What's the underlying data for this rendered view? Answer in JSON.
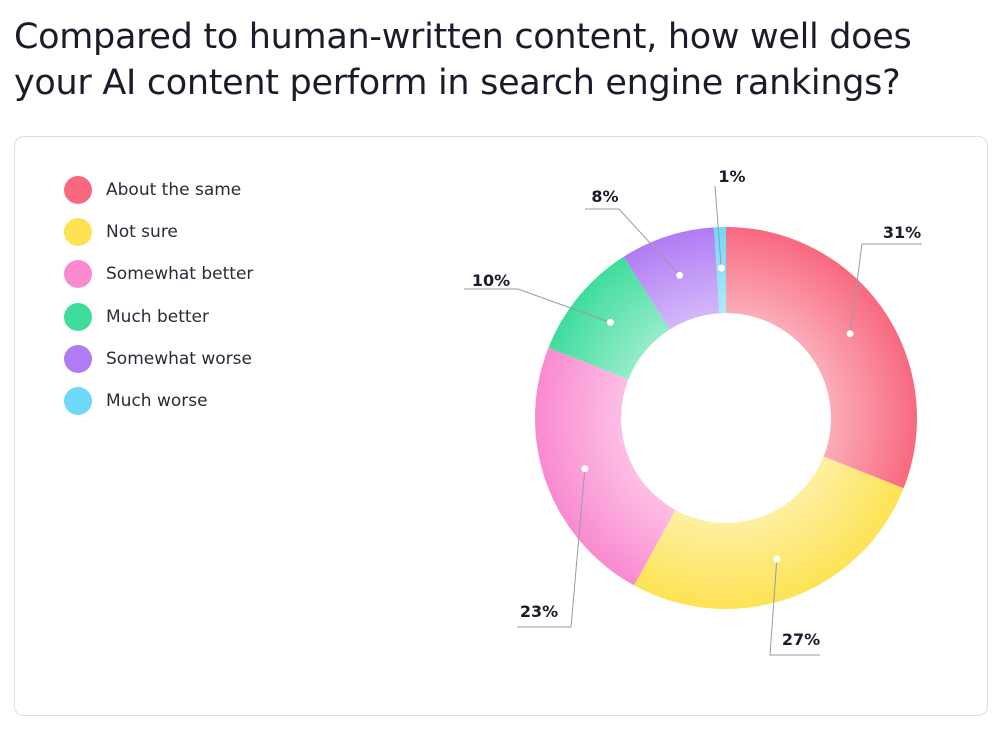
{
  "title": "Compared to human-written content, how well does your AI content perform in search engine rankings?",
  "chart_data": {
    "type": "pie",
    "donut": true,
    "title": "Compared to human-written content, how well does your AI content perform in search engine rankings?",
    "legend_position": "left",
    "categories": [
      "About the same",
      "Not sure",
      "Somewhat better",
      "Much better",
      "Somewhat worse",
      "Much worse"
    ],
    "values": [
      31,
      27,
      23,
      10,
      8,
      1
    ],
    "value_labels": [
      "31%",
      "27%",
      "23%",
      "10%",
      "8%",
      "1%"
    ],
    "colors": [
      "#f8697f",
      "#fde354",
      "#fa8ad0",
      "#3fdd9c",
      "#b07cf4",
      "#6fd8f8"
    ]
  },
  "legend": [
    {
      "label": "About the same",
      "color": "#f8697f"
    },
    {
      "label": "Not sure",
      "color": "#fde354"
    },
    {
      "label": "Somewhat better",
      "color": "#fa8ad0"
    },
    {
      "label": "Much better",
      "color": "#3fdd9c"
    },
    {
      "label": "Somewhat worse",
      "color": "#b07cf4"
    },
    {
      "label": "Much worse",
      "color": "#6fd8f8"
    }
  ]
}
